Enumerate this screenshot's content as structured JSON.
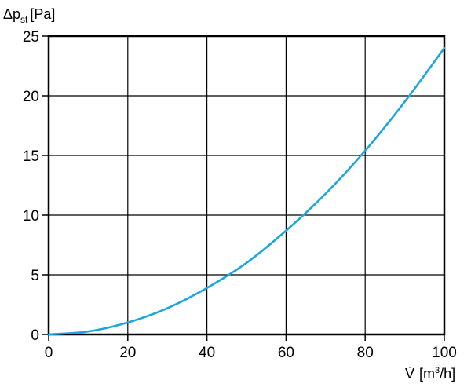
{
  "chart_data": {
    "type": "line",
    "ylabel": {
      "prefix": "Δp",
      "subscript": "st",
      "unit": "[Pa]"
    },
    "xlabel": {
      "symbol": "V̇",
      "unit_prefix": "[m",
      "unit_sup": "3",
      "unit_suffix": "/h]"
    },
    "xlim": [
      0,
      100
    ],
    "ylim": [
      0,
      25
    ],
    "x_ticks": [
      0,
      20,
      40,
      60,
      80,
      100
    ],
    "y_ticks": [
      0,
      5,
      10,
      15,
      20,
      25
    ],
    "grid": true,
    "series": [
      {
        "color": "#1aa7e1",
        "x": [
          0,
          10,
          20,
          30,
          40,
          50,
          60,
          70,
          80,
          90,
          100
        ],
        "y": [
          0,
          0.25,
          1.0,
          2.2,
          3.9,
          6.0,
          8.7,
          11.8,
          15.4,
          19.5,
          24.0
        ]
      }
    ]
  }
}
